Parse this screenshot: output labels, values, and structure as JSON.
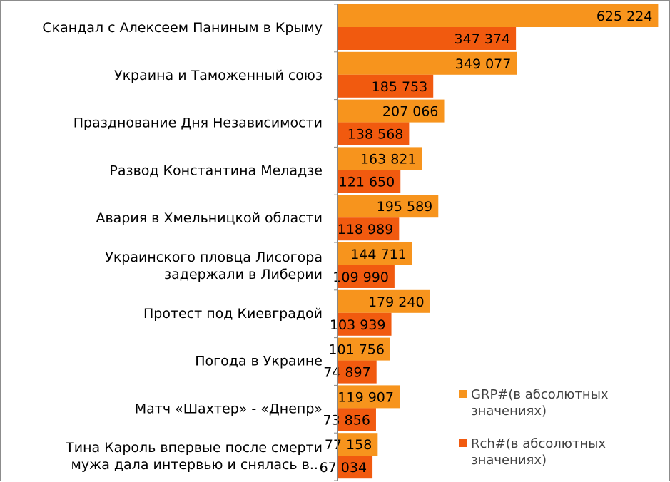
{
  "chart_data": {
    "type": "bar",
    "orientation": "horizontal",
    "categories": [
      [
        "Скандал с Алексеем Паниным в Крыму"
      ],
      [
        "Украина и Таможенный союз"
      ],
      [
        "Празднование Дня Независимости"
      ],
      [
        "Развод Константина Меладзе"
      ],
      [
        "Авария в Хмельницкой области"
      ],
      [
        "Украинского пловца Лисогора",
        "задержали в Либерии"
      ],
      [
        "Протест под Киевградой"
      ],
      [
        "Погода в Украине"
      ],
      [
        "Матч «Шахтер» -  «Днепр»"
      ],
      [
        "Тина Кароль впервые после смерти",
        "мужа дала интервью и снялась в..."
      ]
    ],
    "series": [
      {
        "name": [
          "GRP#(в абсолютных",
          "значениях)"
        ],
        "color": "#F7941D",
        "values": [
          625224,
          349077,
          207066,
          163821,
          195589,
          144711,
          179240,
          101756,
          119907,
          77158
        ],
        "labels": [
          "625 224",
          "349 077",
          "207 066",
          "163 821",
          "195 589",
          "144 711",
          "179 240",
          "101 756",
          "119 907",
          "77 158"
        ]
      },
      {
        "name": [
          "Rch#(в абсолютных",
          "значениях)"
        ],
        "color": "#F15A0F",
        "values": [
          347374,
          185753,
          138568,
          121650,
          118989,
          109990,
          103939,
          74897,
          73856,
          67034
        ],
        "labels": [
          "347 374",
          "185 753",
          "138 568",
          "121 650",
          "118 989",
          "109 990",
          "103 939",
          "74 897",
          "73 856",
          "67 034"
        ]
      }
    ],
    "xlim": [
      0,
      640000
    ],
    "grid": false,
    "legend": "right"
  }
}
